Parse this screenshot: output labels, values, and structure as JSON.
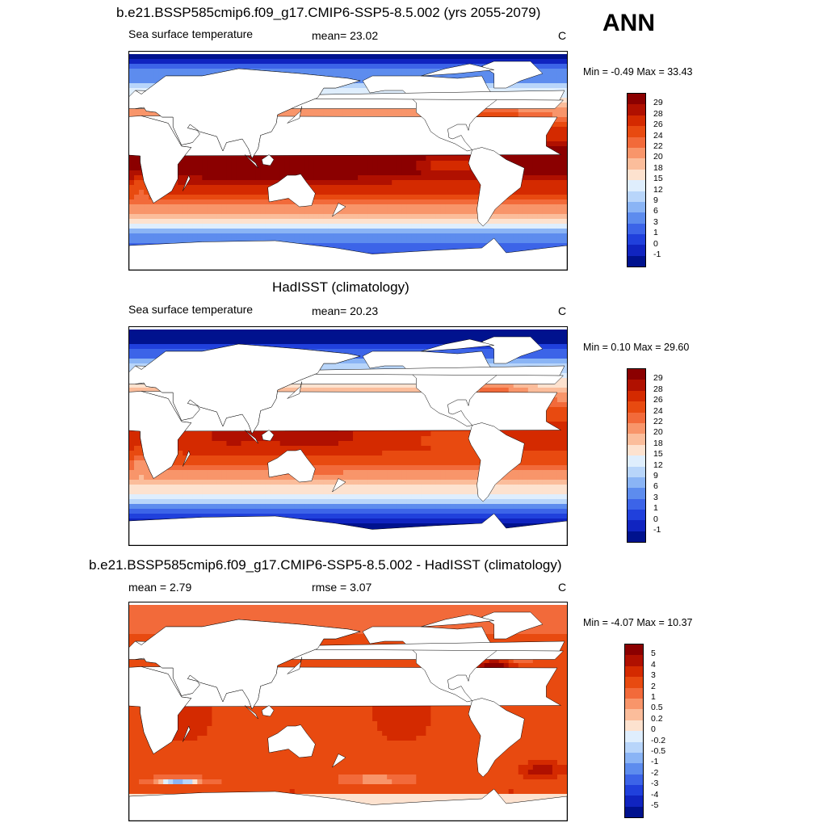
{
  "season": "ANN",
  "units": "C",
  "panels": [
    {
      "title": "b.e21.BSSP585cmip6.f09_g17.CMIP6-SSP5-8.5.002 (yrs 2055-2079)",
      "left_label": "Sea surface temperature",
      "center_label": "mean=  23.02",
      "units": "C",
      "minmax": "Min =  -0.49 Max =  33.43",
      "cbar_labels": [
        "29",
        "28",
        "26",
        "24",
        "22",
        "20",
        "18",
        "15",
        "12",
        "9",
        "6",
        "3",
        "1",
        "0",
        "-1"
      ],
      "cbar_colors": [
        "#8b0000",
        "#b01000",
        "#d42a00",
        "#e84a10",
        "#f26a3a",
        "#f8956a",
        "#fbbd9b",
        "#fde2cf",
        "#dfeefd",
        "#b8d5fa",
        "#8ab4f5",
        "#5d8cee",
        "#3c64e8",
        "#2040dc",
        "#1024c0",
        "#00128e"
      ],
      "field": "model"
    },
    {
      "title": "HadISST (climatology)",
      "left_label": "Sea surface temperature",
      "center_label": "mean=  20.23",
      "units": "C",
      "minmax": "Min =   0.10 Max =  29.60",
      "cbar_labels": [
        "29",
        "28",
        "26",
        "24",
        "22",
        "20",
        "18",
        "15",
        "12",
        "9",
        "6",
        "3",
        "1",
        "0",
        "-1"
      ],
      "cbar_colors": [
        "#8b0000",
        "#b01000",
        "#d42a00",
        "#e84a10",
        "#f26a3a",
        "#f8956a",
        "#fbbd9b",
        "#fde2cf",
        "#dfeefd",
        "#b8d5fa",
        "#8ab4f5",
        "#5d8cee",
        "#3c64e8",
        "#2040dc",
        "#1024c0",
        "#00128e"
      ],
      "field": "obs"
    },
    {
      "title": "b.e21.BSSP585cmip6.f09_g17.CMIP6-SSP5-8.5.002 - HadISST (climatology)",
      "left_label": "mean =   2.79",
      "center_label": "rmse =   3.07",
      "units": "C",
      "minmax": "Min =  -4.07 Max =  10.37",
      "cbar_labels": [
        "5",
        "4",
        "3",
        "2",
        "1",
        "0.5",
        "0.2",
        "0",
        "-0.2",
        "-0.5",
        "-1",
        "-2",
        "-3",
        "-4",
        "-5"
      ],
      "cbar_colors": [
        "#8b0000",
        "#b01000",
        "#d42a00",
        "#e84a10",
        "#f26a3a",
        "#f8956a",
        "#fbbd9b",
        "#fde2cf",
        "#dfeefd",
        "#b8d5fa",
        "#8ab4f5",
        "#5d8cee",
        "#3c64e8",
        "#2040dc",
        "#1024c0",
        "#00128e"
      ],
      "field": "diff"
    }
  ]
}
